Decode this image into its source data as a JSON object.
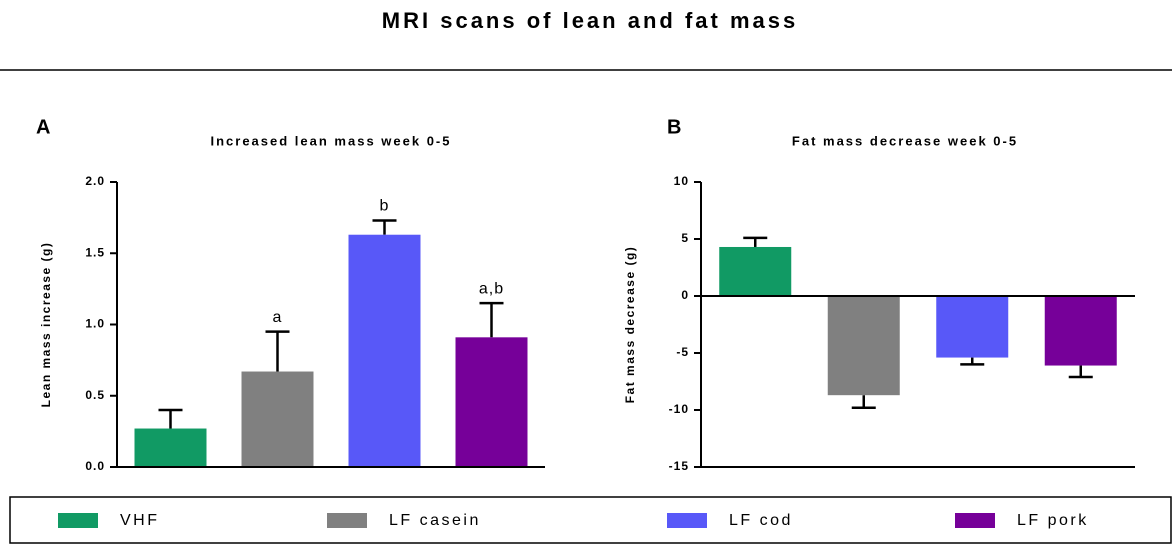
{
  "title": "MRI scans of lean and fat mass",
  "chart_data": [
    {
      "type": "bar",
      "panel": "A",
      "title": "Increased lean mass week 0-5",
      "ylabel": "Lean mass increase (g)",
      "categories": [
        "VHF",
        "LF casein",
        "LF cod",
        "LF pork"
      ],
      "colors": [
        "#119a64",
        "#808080",
        "#5858f8",
        "#760099"
      ],
      "values": [
        0.27,
        0.67,
        1.63,
        0.91
      ],
      "errors": [
        0.13,
        0.28,
        0.1,
        0.24
      ],
      "annotations": [
        null,
        "a",
        "b",
        "a,b"
      ],
      "ylim": [
        0,
        2
      ],
      "yticks": [
        {
          "value": 0,
          "label": "0.0"
        },
        0.5,
        {
          "value": 1,
          "label": "1.0"
        },
        1.5,
        {
          "value": 2,
          "label": "2.0"
        }
      ]
    },
    {
      "type": "bar",
      "panel": "B",
      "title": "Fat mass decrease week 0-5",
      "ylabel": "Fat mass decrease (g)",
      "categories": [
        "VHF",
        "LF casein",
        "LF cod",
        "LF pork"
      ],
      "colors": [
        "#119a64",
        "#808080",
        "#5858f8",
        "#760099"
      ],
      "values": [
        4.3,
        -8.7,
        -5.4,
        -6.1
      ],
      "errors": [
        0.8,
        1.1,
        0.6,
        1.0
      ],
      "ylim": [
        -15,
        10
      ],
      "yticks": [
        -15,
        -10,
        -5,
        0,
        5,
        10
      ]
    }
  ]
}
